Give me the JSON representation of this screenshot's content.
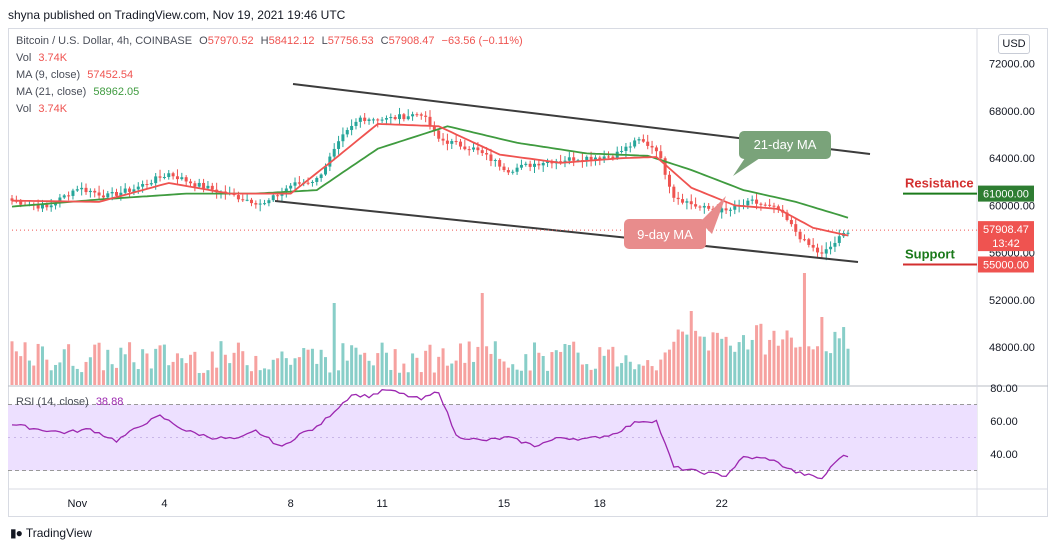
{
  "header": {
    "published": "shyna published on TradingView.com, Nov 19, 2021 19:46 UTC"
  },
  "legend": {
    "symbol": "Bitcoin / U.S. Dollar, 4h, COINBASE",
    "o_label": "O",
    "o": "57970.52",
    "h_label": "H",
    "h": "58412.12",
    "l_label": "L",
    "l": "57756.53",
    "c_label": "C",
    "c": "57908.47",
    "change": "−63.56 (−0.11%)",
    "vol_label": "Vol",
    "vol_value": "3.74K",
    "ma9_label": "MA (9, close)",
    "ma9_value": "57452.54",
    "ma21_label": "MA (21, close)",
    "ma21_value": "58962.05",
    "vol2_label": "Vol",
    "vol2_value": "3.74K",
    "rsi_label": "RSI (14, close)",
    "rsi_value": "38.88"
  },
  "currency_button": "USD",
  "brand": "TradingView",
  "colors": {
    "up": "#26a69a",
    "down": "#ef5350",
    "ma9": "#ef5350",
    "ma21": "#3f9b3f",
    "rsi": "#9c27b0",
    "rsi_band": "#ede0ff",
    "channel": "#3c3c3c",
    "resistance": "#1b7a1b",
    "support": "#1b7a1b"
  },
  "chart_data": {
    "type": "candlestick",
    "price_axis_ticks": [
      "72000.00",
      "68000.00",
      "64000.00",
      "60000.00",
      "56000.00",
      "52000.00",
      "48000.00"
    ],
    "price_axis_range": [
      44800,
      74000
    ],
    "x_ticks": [
      "Nov",
      "4",
      "8",
      "11",
      "15",
      "18",
      "22"
    ],
    "last_price": "57908.47",
    "countdown": "13:42",
    "resistance": {
      "label": "Resistance",
      "value": "61000.00"
    },
    "support": {
      "label": "Support",
      "value": "55000.00"
    },
    "annotations": [
      {
        "text": "21-day MA"
      },
      {
        "text": "9-day MA"
      }
    ],
    "close_anchors": [
      [
        0,
        60400
      ],
      [
        8,
        59800
      ],
      [
        15,
        61500
      ],
      [
        22,
        60800
      ],
      [
        28,
        61400
      ],
      [
        36,
        62700
      ],
      [
        42,
        61800
      ],
      [
        50,
        60900
      ],
      [
        58,
        60100
      ],
      [
        64,
        61700
      ],
      [
        70,
        62200
      ],
      [
        76,
        65800
      ],
      [
        80,
        67400
      ],
      [
        86,
        67300
      ],
      [
        94,
        67800
      ],
      [
        98,
        65600
      ],
      [
        106,
        64800
      ],
      [
        114,
        63000
      ],
      [
        122,
        63700
      ],
      [
        130,
        64000
      ],
      [
        138,
        64200
      ],
      [
        144,
        65500
      ],
      [
        148,
        64800
      ],
      [
        152,
        60800
      ],
      [
        158,
        59800
      ],
      [
        164,
        59500
      ],
      [
        170,
        60300
      ],
      [
        176,
        59600
      ],
      [
        182,
        56900
      ],
      [
        186,
        55800
      ],
      [
        190,
        57200
      ],
      [
        192,
        57908
      ]
    ],
    "ma9_anchors": [
      [
        0,
        60400
      ],
      [
        20,
        60300
      ],
      [
        36,
        61900
      ],
      [
        50,
        61000
      ],
      [
        64,
        61000
      ],
      [
        74,
        63900
      ],
      [
        84,
        66900
      ],
      [
        98,
        66700
      ],
      [
        112,
        64300
      ],
      [
        126,
        63600
      ],
      [
        140,
        64000
      ],
      [
        148,
        64100
      ],
      [
        156,
        61500
      ],
      [
        166,
        60000
      ],
      [
        176,
        59700
      ],
      [
        184,
        58100
      ],
      [
        192,
        57452
      ]
    ],
    "ma21_anchors": [
      [
        0,
        59900
      ],
      [
        20,
        60500
      ],
      [
        40,
        61000
      ],
      [
        56,
        61000
      ],
      [
        70,
        61300
      ],
      [
        84,
        64800
      ],
      [
        100,
        66700
      ],
      [
        116,
        65300
      ],
      [
        132,
        64400
      ],
      [
        146,
        64200
      ],
      [
        156,
        63000
      ],
      [
        168,
        61300
      ],
      [
        180,
        60300
      ],
      [
        192,
        58962
      ]
    ],
    "volume": {
      "range": [
        0,
        6000
      ],
      "spikes": [
        [
          74,
          4.1
        ],
        [
          108,
          4.6
        ],
        [
          156,
          3.7
        ],
        [
          182,
          5.6
        ],
        [
          186,
          3.4
        ]
      ]
    },
    "rsi": {
      "range": [
        20,
        80
      ],
      "ticks": [
        "80.00",
        "60.00",
        "40.00"
      ],
      "band": [
        30,
        70
      ],
      "anchors": [
        [
          0,
          58
        ],
        [
          6,
          55
        ],
        [
          12,
          53
        ],
        [
          18,
          55
        ],
        [
          24,
          48
        ],
        [
          30,
          58
        ],
        [
          34,
          63
        ],
        [
          40,
          54
        ],
        [
          46,
          50
        ],
        [
          52,
          49
        ],
        [
          56,
          54
        ],
        [
          62,
          44
        ],
        [
          66,
          52
        ],
        [
          70,
          56
        ],
        [
          74,
          66
        ],
        [
          78,
          76
        ],
        [
          82,
          75
        ],
        [
          86,
          79
        ],
        [
          90,
          76
        ],
        [
          94,
          73
        ],
        [
          98,
          78
        ],
        [
          102,
          51
        ],
        [
          108,
          48
        ],
        [
          114,
          50
        ],
        [
          120,
          45
        ],
        [
          126,
          50
        ],
        [
          132,
          49
        ],
        [
          138,
          52
        ],
        [
          144,
          60
        ],
        [
          148,
          60
        ],
        [
          152,
          32
        ],
        [
          158,
          29
        ],
        [
          164,
          27
        ],
        [
          168,
          38
        ],
        [
          174,
          37
        ],
        [
          180,
          29
        ],
        [
          186,
          25
        ],
        [
          190,
          38
        ],
        [
          192,
          38.88
        ]
      ]
    }
  }
}
